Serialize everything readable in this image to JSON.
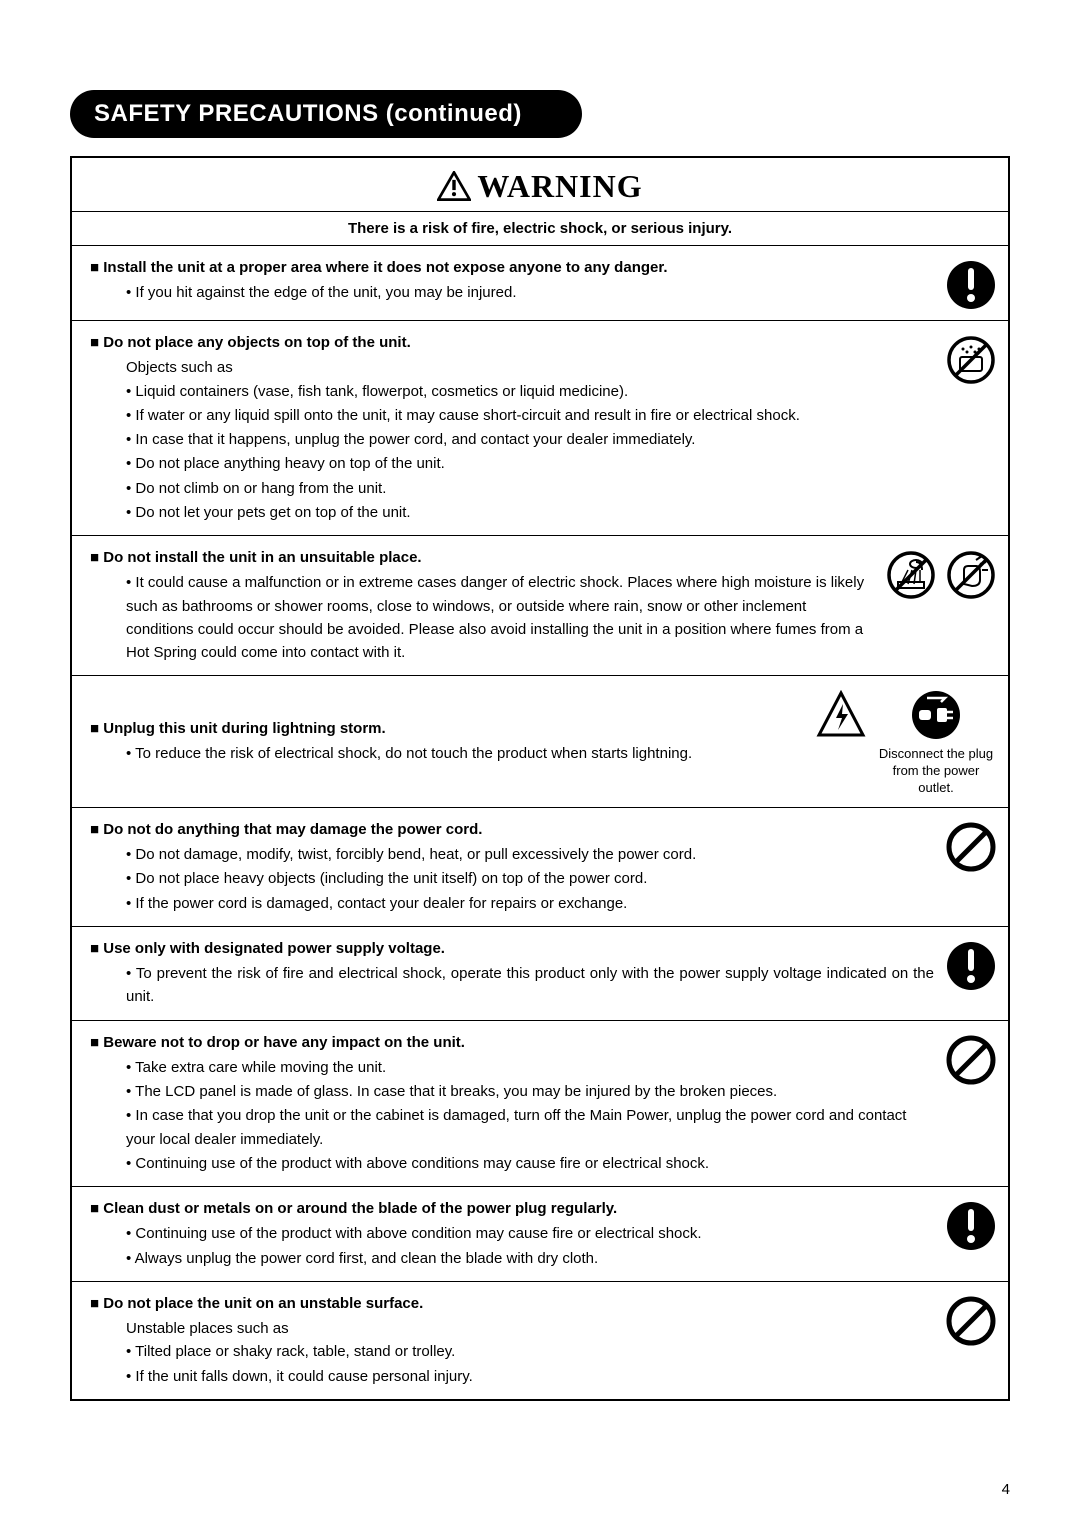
{
  "page": {
    "title": "SAFETY PRECAUTIONS (continued)",
    "warning_label": "WARNING",
    "risk_line": "There is a risk of fire, electric shock, or serious injury.",
    "page_number": "4"
  },
  "colors": {
    "text": "#000000",
    "bg": "#ffffff",
    "pill_bg": "#000000",
    "pill_text": "#ffffff",
    "border": "#000000"
  },
  "icons": {
    "mandatory": {
      "type": "filled-circle-exclaim",
      "fill": "#000000"
    },
    "prohibit": {
      "type": "circle-slash",
      "stroke": "#000000"
    },
    "prohibit_wet": {
      "type": "circle-slash-water",
      "stroke": "#000000"
    },
    "prohibit_shower": {
      "type": "circle-slash-shower",
      "stroke": "#000000"
    },
    "prohibit_wethand": {
      "type": "circle-slash-wethand",
      "stroke": "#000000"
    },
    "lightning": {
      "type": "triangle-bolt",
      "stroke": "#000000"
    },
    "unplug": {
      "type": "filled-circle-unplug",
      "fill": "#000000"
    }
  },
  "rows": [
    {
      "heading": "Install the unit at a proper area where it does not expose anyone to any danger.",
      "bullets": [
        "If you hit against the edge of the unit, you may be injured."
      ],
      "icons": [
        "mandatory"
      ]
    },
    {
      "heading": "Do not place any objects on top of the unit.",
      "subtext": "Objects such as",
      "bullets": [
        "Liquid containers (vase, fish tank, flowerpot, cosmetics or liquid medicine).",
        "If water or any liquid spill onto the unit, it may cause short-circuit and result in fire or electrical shock.",
        "In case that it happens, unplug the power cord, and contact your dealer immediately.",
        "Do not place anything heavy on top of the unit.",
        "Do not climb on or hang from the unit.",
        "Do not let your pets get on top of the unit."
      ],
      "icons": [
        "prohibit_wet"
      ]
    },
    {
      "heading": "Do not install the unit in an unsuitable place.",
      "bullets": [
        "It could cause a malfunction or in extreme cases danger of electric shock. Places where high moisture is likely such as bathrooms or shower rooms, close to windows, or outside where rain, snow or other inclement conditions could occur should be avoided. Please also avoid installing the unit in a position where fumes from a Hot Spring could come into contact with it."
      ],
      "icons": [
        "prohibit_shower",
        "prohibit_wethand"
      ]
    },
    {
      "heading": "Unplug this unit during lightning storm.",
      "bullets": [
        "To reduce the risk of electrical shock, do not touch the product when starts lightning."
      ],
      "icons_layout": "two-col-caption",
      "col1_icons": [
        "lightning"
      ],
      "col2_icons": [
        "unplug"
      ],
      "col2_caption": "Disconnect the plug from the power outlet."
    },
    {
      "heading": "Do not do anything that may damage the power cord.",
      "bullets": [
        "Do not damage, modify, twist, forcibly bend, heat, or pull excessively the power cord.",
        "Do not place heavy objects (including the unit itself) on top of the power cord.",
        "If the power cord is damaged, contact your dealer for repairs or exchange."
      ],
      "icons": [
        "prohibit"
      ]
    },
    {
      "heading": "Use only with designated power supply voltage.",
      "bullets": [
        "To prevent the risk of fire and electrical shock, operate this product only with the power supply voltage indicated on the unit."
      ],
      "bullet_justify": true,
      "icons": [
        "mandatory"
      ]
    },
    {
      "heading": "Beware not to drop or have any impact on the unit.",
      "bullets": [
        "Take extra care while moving the unit.",
        "The LCD panel is made of glass. In case that it breaks, you may be injured by the broken pieces.",
        "In case that you drop the unit or the cabinet is damaged, turn off the Main Power, unplug the power cord and contact your local dealer immediately.",
        "Continuing use of the product with above conditions may cause fire or electrical shock."
      ],
      "icons": [
        "prohibit"
      ]
    },
    {
      "heading": "Clean dust or metals on or around the blade of the power plug regularly.",
      "bullets": [
        "Continuing use of the product with above condition may cause fire or electrical shock.",
        "Always unplug the power cord first, and clean the blade with dry cloth."
      ],
      "icons": [
        "mandatory"
      ]
    },
    {
      "heading": "Do not place the unit on an unstable surface.",
      "subtext": "Unstable places such as",
      "bullets": [
        "Tilted place or shaky rack, table, stand or trolley.",
        "If the unit falls down, it could cause personal injury."
      ],
      "icons": [
        "prohibit"
      ]
    }
  ]
}
